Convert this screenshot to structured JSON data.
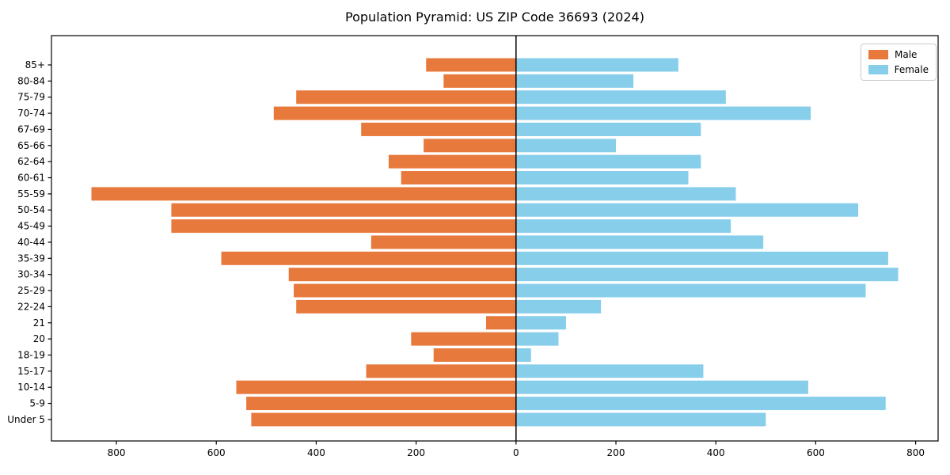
{
  "title": "Population Pyramid: US ZIP Code 36693 (2024)",
  "legend": {
    "male": "Male",
    "female": "Female"
  },
  "colors": {
    "male": "#E8793D",
    "female": "#87CEEB",
    "axis": "#000000",
    "zero_line": "#000000",
    "legend_border": "#cccccc",
    "background": "#ffffff"
  },
  "chart_data": {
    "type": "bar",
    "orientation": "horizontal-pyramid",
    "title": "Population Pyramid: US ZIP Code 36693 (2024)",
    "categories": [
      "85+",
      "80-84",
      "75-79",
      "70-74",
      "67-69",
      "65-66",
      "62-64",
      "60-61",
      "55-59",
      "50-54",
      "45-49",
      "40-44",
      "35-39",
      "30-34",
      "25-29",
      "22-24",
      "21",
      "20",
      "18-19",
      "15-17",
      "10-14",
      "5-9",
      "Under 5"
    ],
    "series": [
      {
        "name": "Male",
        "side": "left",
        "color": "#E8793D",
        "values": [
          180,
          145,
          440,
          485,
          310,
          185,
          255,
          230,
          850,
          690,
          690,
          290,
          590,
          455,
          445,
          440,
          60,
          210,
          165,
          300,
          560,
          540,
          530
        ]
      },
      {
        "name": "Female",
        "side": "right",
        "color": "#87CEEB",
        "values": [
          325,
          235,
          420,
          590,
          370,
          200,
          370,
          345,
          440,
          685,
          430,
          495,
          745,
          765,
          700,
          170,
          100,
          85,
          30,
          375,
          585,
          740,
          500
        ]
      }
    ],
    "x_ticks": [
      -800,
      -600,
      -400,
      -200,
      0,
      200,
      400,
      600,
      800
    ],
    "x_tick_labels": [
      "800",
      "600",
      "400",
      "200",
      "0",
      "200",
      "400",
      "600",
      "800"
    ],
    "xlim": [
      -930,
      845
    ],
    "legend_position": "upper right",
    "grid": false
  }
}
